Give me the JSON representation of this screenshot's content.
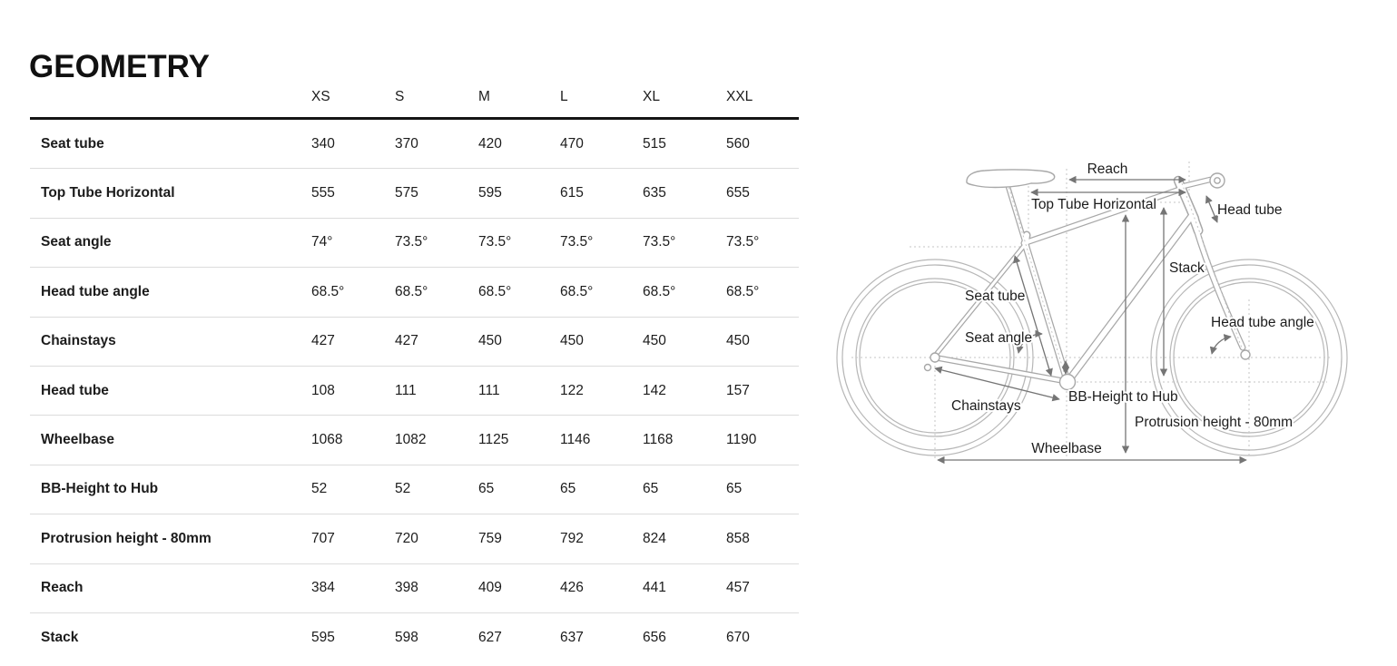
{
  "title": "GEOMETRY",
  "table": {
    "size_headers": [
      "XS",
      "S",
      "M",
      "L",
      "XL",
      "XXL"
    ],
    "rows": [
      {
        "label": "Seat tube",
        "values": [
          "340",
          "370",
          "420",
          "470",
          "515",
          "560"
        ]
      },
      {
        "label": "Top Tube Horizontal",
        "values": [
          "555",
          "575",
          "595",
          "615",
          "635",
          "655"
        ]
      },
      {
        "label": "Seat angle",
        "values": [
          "74°",
          "73.5°",
          "73.5°",
          "73.5°",
          "73.5°",
          "73.5°"
        ]
      },
      {
        "label": "Head tube angle",
        "values": [
          "68.5°",
          "68.5°",
          "68.5°",
          "68.5°",
          "68.5°",
          "68.5°"
        ]
      },
      {
        "label": "Chainstays",
        "values": [
          "427",
          "427",
          "450",
          "450",
          "450",
          "450"
        ]
      },
      {
        "label": "Head tube",
        "values": [
          "108",
          "111",
          "111",
          "122",
          "142",
          "157"
        ]
      },
      {
        "label": "Wheelbase",
        "values": [
          "1068",
          "1082",
          "1125",
          "1146",
          "1168",
          "1190"
        ]
      },
      {
        "label": "BB-Height to Hub",
        "values": [
          "52",
          "52",
          "65",
          "65",
          "65",
          "65"
        ]
      },
      {
        "label": "Protrusion height - 80mm",
        "values": [
          "707",
          "720",
          "759",
          "792",
          "824",
          "858"
        ]
      },
      {
        "label": "Reach",
        "values": [
          "384",
          "398",
          "409",
          "426",
          "441",
          "457"
        ]
      },
      {
        "label": "Stack",
        "values": [
          "595",
          "598",
          "627",
          "637",
          "656",
          "670"
        ]
      }
    ]
  },
  "diagram": {
    "labels": {
      "reach": "Reach",
      "top_tube_horizontal": "Top Tube Horizontal",
      "head_tube": "Head tube",
      "stack": "Stack",
      "seat_tube": "Seat tube",
      "head_tube_angle": "Head tube angle",
      "seat_angle": "Seat angle",
      "bb_height_to_hub": "BB-Height to Hub",
      "chainstays": "Chainstays",
      "protrusion_height": "Protrusion height - 80mm",
      "wheelbase": "Wheelbase"
    }
  },
  "colors": {
    "text": "#1c1c1c",
    "header_rule": "#151515",
    "row_separator": "#dcdcdc",
    "bike_outline": "#a8a8a8",
    "wheel_outline": "#b7b7b7",
    "arrow": "#757575",
    "reference_dash": "#c5c5c5"
  }
}
